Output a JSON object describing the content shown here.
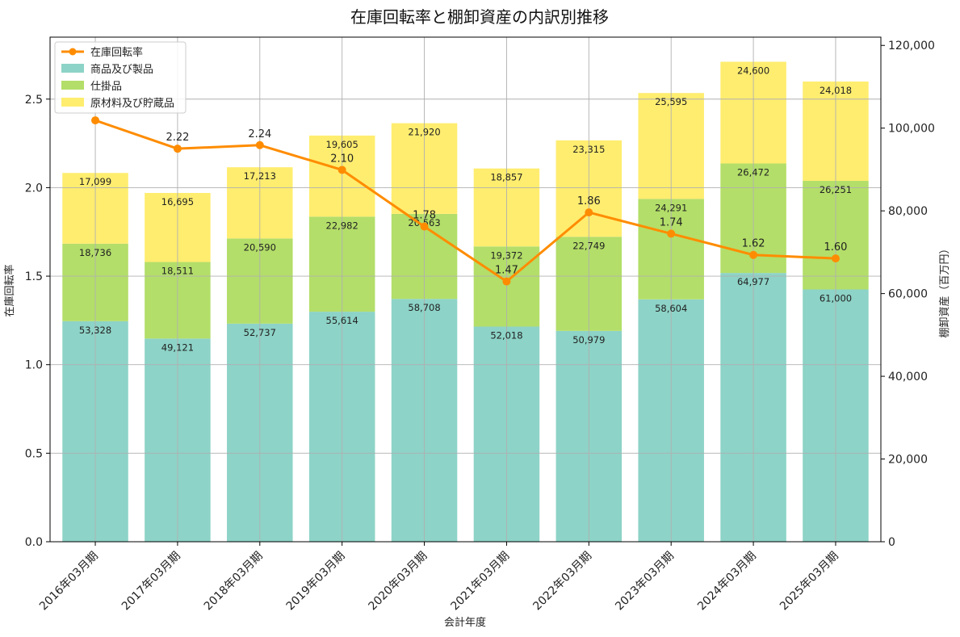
{
  "chart_data": {
    "type": "bar",
    "title": "在庫回転率と棚卸資産の内訳別推移",
    "xlabel": "会計年度",
    "ylabel_left": "在庫回転率",
    "ylabel_right": "棚卸資産（百万円）",
    "categories": [
      "2016年03月期",
      "2017年03月期",
      "2018年03月期",
      "2019年03月期",
      "2020年03月期",
      "2021年03月期",
      "2022年03月期",
      "2023年03月期",
      "2024年03月期",
      "2025年03月期"
    ],
    "stacked_series": [
      {
        "name": "商品及び製品",
        "color": "#8dd3c7",
        "values": [
          53328,
          49121,
          52737,
          55614,
          58708,
          52018,
          50979,
          58604,
          64977,
          61000
        ],
        "labels": [
          "53,328",
          "49,121",
          "52,737",
          "55,614",
          "58,708",
          "52,018",
          "50,979",
          "58,604",
          "64,977",
          "61,000"
        ]
      },
      {
        "name": "仕掛品",
        "color": "#b3de69",
        "values": [
          18736,
          18511,
          20590,
          22982,
          20563,
          19372,
          22749,
          24291,
          26472,
          26251
        ],
        "labels": [
          "18,736",
          "18,511",
          "20,590",
          "22,982",
          "20,563",
          "19,372",
          "22,749",
          "24,291",
          "26,472",
          "26,251"
        ]
      },
      {
        "name": "原材料及び貯蔵品",
        "color": "#ffed6f",
        "values": [
          17099,
          16695,
          17213,
          19605,
          21920,
          18857,
          23315,
          25595,
          24600,
          24018
        ],
        "labels": [
          "17,099",
          "16,695",
          "17,213",
          "19,605",
          "21,920",
          "18,857",
          "23,315",
          "25,595",
          "24,600",
          "24,018"
        ]
      }
    ],
    "line_series": {
      "name": "在庫回転率",
      "color": "#ff8c00",
      "values": [
        2.38,
        2.22,
        2.24,
        2.1,
        1.78,
        1.47,
        1.86,
        1.74,
        1.62,
        1.6
      ],
      "point_labels": [
        "",
        "2.22",
        "2.24",
        "2.10",
        "1.78",
        "1.47",
        "1.86",
        "1.74",
        "1.62",
        "1.60"
      ]
    },
    "ylim_left": [
      0,
      2.85
    ],
    "yticks_left": [
      "0.0",
      "0.5",
      "1.0",
      "1.5",
      "2.0",
      "2.5"
    ],
    "ylim_right": [
      0,
      122000
    ],
    "yticks_right": [
      "0",
      "20,000",
      "40,000",
      "60,000",
      "80,000",
      "100,000",
      "120,000"
    ],
    "grid": true,
    "legend_position": "top-left",
    "legend_items": [
      "在庫回転率",
      "商品及び製品",
      "仕掛品",
      "原材料及び貯蔵品"
    ]
  }
}
